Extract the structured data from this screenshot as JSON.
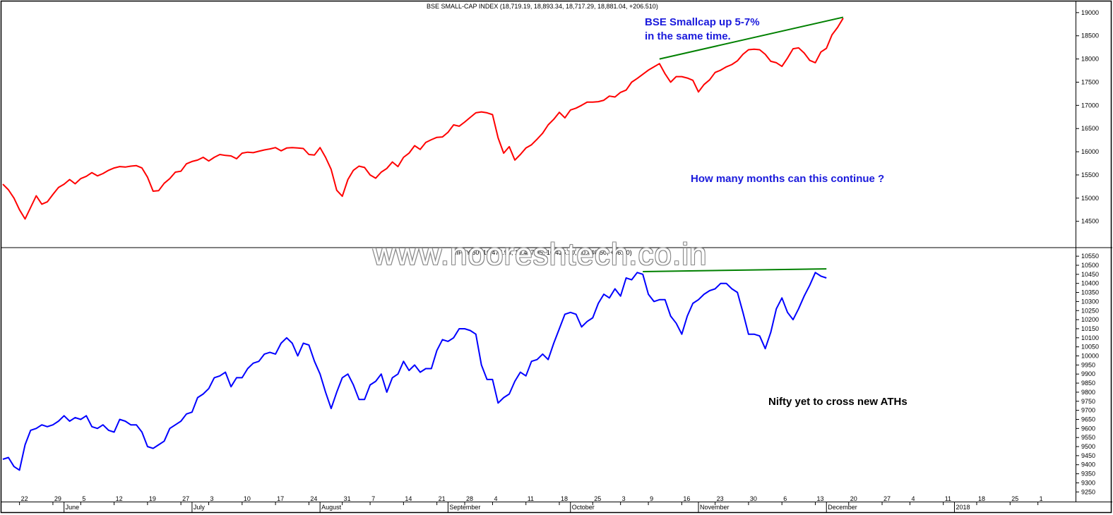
{
  "chart_data": [
    {
      "type": "line",
      "title": "BSE SMALL-CAP INDEX (18,719.19, 18,893.34, 18,717.29, 18,881.04, +206.510)",
      "series": [
        {
          "color": "#ff0000",
          "values": [
            15300,
            15180,
            15000,
            14750,
            14550,
            14800,
            15050,
            14870,
            14920,
            15080,
            15230,
            15300,
            15400,
            15310,
            15420,
            15470,
            15550,
            15480,
            15530,
            15600,
            15650,
            15680,
            15670,
            15690,
            15700,
            15650,
            15450,
            15150,
            15160,
            15320,
            15420,
            15560,
            15580,
            15740,
            15790,
            15820,
            15880,
            15800,
            15880,
            15940,
            15920,
            15910,
            15850,
            15970,
            15990,
            15980,
            16010,
            16040,
            16060,
            16090,
            16020,
            16080,
            16090,
            16080,
            16070,
            15940,
            15930,
            16090,
            15880,
            15620,
            15170,
            15040,
            15400,
            15600,
            15690,
            15660,
            15500,
            15430,
            15560,
            15640,
            15780,
            15680,
            15880,
            15970,
            16130,
            16050,
            16200,
            16260,
            16310,
            16320,
            16420,
            16580,
            16550,
            16640,
            16740,
            16840,
            16860,
            16840,
            16800,
            16300,
            15970,
            16110,
            15820,
            15940,
            16080,
            16150,
            16270,
            16400,
            16580,
            16700,
            16850,
            16730,
            16900,
            16940,
            17000,
            17070,
            17070,
            17080,
            17110,
            17200,
            17180,
            17280,
            17330,
            17500,
            17580,
            17670,
            17760,
            17830,
            17900,
            17680,
            17500,
            17620,
            17620,
            17590,
            17540,
            17290,
            17450,
            17550,
            17710,
            17760,
            17830,
            17880,
            17960,
            18100,
            18200,
            18210,
            18200,
            18100,
            17950,
            17920,
            17840,
            18020,
            18220,
            18240,
            18130,
            17970,
            17920,
            18150,
            18230,
            18520,
            18680,
            18880
          ]
        },
        {
          "color": "#008000",
          "values": []
        }
      ],
      "ylim": [
        14100,
        19150
      ],
      "yticks": [
        14500,
        15000,
        15500,
        16000,
        16500,
        17000,
        17500,
        18000,
        18500,
        19000
      ],
      "trendline": {
        "start_index": 118,
        "start_value": 18000,
        "end_index": 151,
        "end_value": 18900
      },
      "annotations": [
        "BSE Smallcap up 5-7%",
        "in the same time.",
        "How many months can this continue ?"
      ]
    },
    {
      "type": "line",
      "title": "NIFTY 50 (10,477.95, 10,477.95, 10,426.10, 10,440.50, +36.00)",
      "series": [
        {
          "color": "#0000ff",
          "values": [
            9430,
            9440,
            9390,
            9370,
            9510,
            9590,
            9600,
            9620,
            9610,
            9620,
            9640,
            9670,
            9640,
            9660,
            9650,
            9670,
            9610,
            9600,
            9620,
            9590,
            9580,
            9650,
            9640,
            9620,
            9620,
            9580,
            9500,
            9490,
            9510,
            9530,
            9600,
            9620,
            9640,
            9680,
            9690,
            9770,
            9790,
            9820,
            9880,
            9890,
            9910,
            9830,
            9880,
            9880,
            9930,
            9960,
            9970,
            10010,
            10020,
            10010,
            10070,
            10100,
            10070,
            10000,
            10070,
            10060,
            9970,
            9900,
            9800,
            9710,
            9800,
            9880,
            9900,
            9840,
            9760,
            9760,
            9840,
            9860,
            9900,
            9800,
            9880,
            9900,
            9970,
            9920,
            9950,
            9910,
            9930,
            9930,
            10030,
            10090,
            10080,
            10100,
            10150,
            10150,
            10140,
            10120,
            9950,
            9870,
            9870,
            9740,
            9770,
            9790,
            9860,
            9910,
            9890,
            9970,
            9980,
            10010,
            9980,
            10070,
            10150,
            10230,
            10240,
            10230,
            10160,
            10190,
            10210,
            10290,
            10340,
            10320,
            10370,
            10330,
            10430,
            10420,
            10460,
            10450,
            10340,
            10300,
            10310,
            10310,
            10220,
            10180,
            10120,
            10220,
            10290,
            10310,
            10340,
            10360,
            10370,
            10400,
            10400,
            10370,
            10350,
            10240,
            10120,
            10120,
            10110,
            10040,
            10130,
            10260,
            10320,
            10240,
            10200,
            10260,
            10330,
            10390,
            10460,
            10440,
            10430
          ]
        },
        {
          "color": "#008000",
          "values": []
        }
      ],
      "ylim": [
        9220,
        10570
      ],
      "yticks": [
        9250,
        9300,
        9350,
        9400,
        9450,
        9500,
        9550,
        9600,
        9650,
        9700,
        9750,
        9800,
        9850,
        9900,
        9950,
        10000,
        10050,
        10100,
        10150,
        10200,
        10250,
        10300,
        10350,
        10400,
        10450,
        10500,
        10550
      ],
      "trendline": {
        "start_index": 115,
        "start_value": 10465,
        "end_index": 148,
        "end_value": 10480
      },
      "annotations": [
        "Nifty yet to cross new ATHs"
      ]
    }
  ],
  "x_axis": {
    "day_ticks": [
      {
        "label": "22",
        "index": 3
      },
      {
        "label": "29",
        "index": 9
      },
      {
        "label": "5",
        "index": 14
      },
      {
        "label": "12",
        "index": 20
      },
      {
        "label": "19",
        "index": 26
      },
      {
        "label": "27",
        "index": 32
      },
      {
        "label": "3",
        "index": 37
      },
      {
        "label": "10",
        "index": 43
      },
      {
        "label": "17",
        "index": 49
      },
      {
        "label": "24",
        "index": 55
      },
      {
        "label": "31",
        "index": 61
      },
      {
        "label": "7",
        "index": 66
      },
      {
        "label": "14",
        "index": 72
      },
      {
        "label": "21",
        "index": 78
      },
      {
        "label": "28",
        "index": 83
      },
      {
        "label": "4",
        "index": 88
      },
      {
        "label": "11",
        "index": 94
      },
      {
        "label": "18",
        "index": 100
      },
      {
        "label": "25",
        "index": 106
      },
      {
        "label": "3",
        "index": 111
      },
      {
        "label": "9",
        "index": 116
      },
      {
        "label": "16",
        "index": 122
      },
      {
        "label": "23",
        "index": 128
      },
      {
        "label": "30",
        "index": 134
      },
      {
        "label": "6",
        "index": 140
      },
      {
        "label": "13",
        "index": 146
      },
      {
        "label": "20",
        "index": 152
      },
      {
        "label": "27",
        "index": 158
      },
      {
        "label": "4",
        "index": 163
      },
      {
        "label": "11",
        "index": 169
      },
      {
        "label": "18",
        "index": 175
      },
      {
        "label": "25",
        "index": 181
      },
      {
        "label": "1",
        "index": 186
      }
    ],
    "month_ticks": [
      {
        "label": "June",
        "index": 11
      },
      {
        "label": "July",
        "index": 34
      },
      {
        "label": "August",
        "index": 57
      },
      {
        "label": "September",
        "index": 80
      },
      {
        "label": "October",
        "index": 102
      },
      {
        "label": "November",
        "index": 125
      },
      {
        "label": "December",
        "index": 148
      },
      {
        "label": "2018",
        "index": 171
      }
    ]
  },
  "watermark": "www.nooreshtech.co.in"
}
